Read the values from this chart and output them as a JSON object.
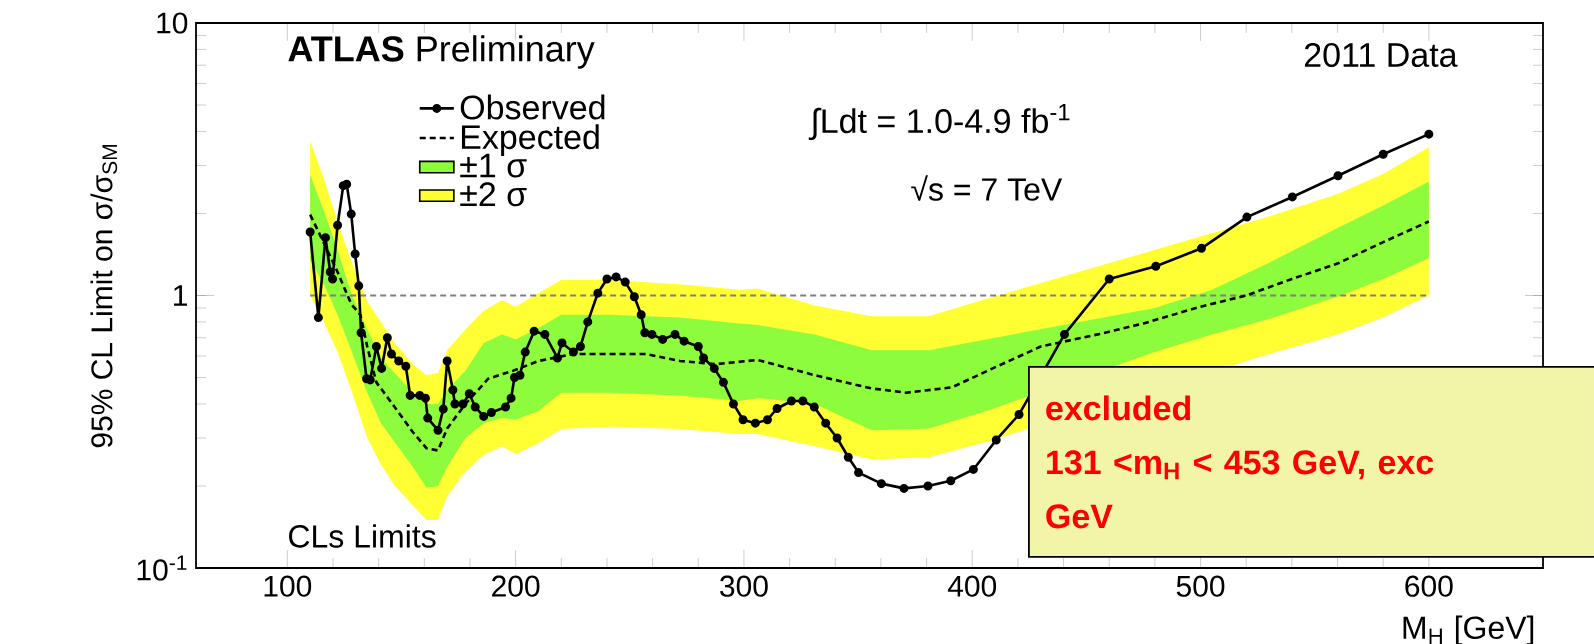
{
  "chart_data": {
    "type": "line",
    "xlabel": "M$_{H}$ [GeV]",
    "ylabel": "95% CL Limit on σ/σ$_{SM}$",
    "xlim": [
      60,
      650
    ],
    "ylim": [
      0.1,
      10
    ],
    "xticks": [
      100,
      200,
      300,
      400,
      500,
      600
    ],
    "yticks": [
      {
        "value": 0.1,
        "label": "10$^{-1}$"
      },
      1,
      10
    ],
    "log": "y",
    "legend": "top left",
    "ref_lines": [
      {
        "axis": "y",
        "value": 1,
        "color": "#808080",
        "line_style": "dashed"
      }
    ],
    "annotations": [
      "**ATLAS** Preliminary",
      "2011 Data",
      "∫Ldt = 1.0-4.9 fb$^{-1}$",
      "√s = 7 TeV",
      "CLs Limits",
      "excluded",
      "131 <m$_{H}$ < 453 GeV, exc",
      "GeV"
    ],
    "series": [
      {
        "name": "Observed",
        "color": "#000000",
        "marker": "circle",
        "line_style": "solid",
        "x": [
          110,
          113.6,
          116.7,
          118.8,
          119.8,
          122,
          124.5,
          126,
          128,
          129.7,
          131.3,
          132.3,
          134.7,
          136.3,
          139,
          141.3,
          143.8,
          145.6,
          148.8,
          151.9,
          153.8,
          158,
          160.5,
          161.5,
          166,
          168.3,
          170,
          172.5,
          173.4,
          176.9,
          179.7,
          182.3,
          186,
          189.4,
          195.6,
          198,
          199.5,
          201.9,
          204.2,
          208.1,
          212.8,
          218.3,
          220.3,
          225.3,
          228.4,
          231.6,
          236,
          240,
          244,
          248,
          252,
          255,
          256.6,
          259.7,
          264.4,
          269.8,
          273.8,
          280,
          282.3,
          287,
          291,
          295.4,
          299.6,
          305,
          310.3,
          314.5,
          320.8,
          325.8,
          330.8,
          335.8,
          340.8,
          345.7,
          350.2,
          360.2,
          370.1,
          380.6,
          390.6,
          400.5,
          410.5,
          420.5,
          430.4,
          440.4,
          460,
          480.4,
          500.4,
          520.3,
          540.2,
          560.2,
          580,
          600
        ],
        "values": [
          1.71,
          0.83,
          1.63,
          1.22,
          1.15,
          1.81,
          2.53,
          2.56,
          1.99,
          1.42,
          1.085,
          0.73,
          0.495,
          0.49,
          0.65,
          0.54,
          0.7,
          0.61,
          0.575,
          0.55,
          0.43,
          0.43,
          0.42,
          0.355,
          0.32,
          0.383,
          0.575,
          0.45,
          0.4,
          0.4,
          0.436,
          0.39,
          0.36,
          0.372,
          0.39,
          0.42,
          0.5,
          0.51,
          0.62,
          0.74,
          0.72,
          0.59,
          0.67,
          0.62,
          0.65,
          0.8,
          1.02,
          1.15,
          1.17,
          1.12,
          0.99,
          0.85,
          0.73,
          0.72,
          0.69,
          0.72,
          0.68,
          0.65,
          0.59,
          0.54,
          0.48,
          0.4,
          0.35,
          0.34,
          0.35,
          0.385,
          0.41,
          0.41,
          0.39,
          0.34,
          0.3,
          0.255,
          0.224,
          0.204,
          0.196,
          0.2,
          0.209,
          0.23,
          0.295,
          0.366,
          null,
          0.72,
          1.15,
          1.28,
          1.49,
          1.94,
          2.3,
          2.75,
          3.3,
          3.91
        ]
      },
      {
        "name": "Expected",
        "color": "#000000",
        "marker": "none",
        "line_style": "dashed",
        "x": [
          110,
          116,
          122,
          128,
          132,
          135,
          139,
          147,
          155,
          161,
          166,
          170,
          178,
          188,
          199,
          210,
          225,
          241,
          257,
          272,
          288,
          306,
          331,
          356,
          371,
          391,
          411,
          430,
          455,
          475,
          500,
          520,
          540,
          560,
          580,
          600
        ],
        "values": [
          1.98,
          1.56,
          1.22,
          0.93,
          0.85,
          0.65,
          0.48,
          0.39,
          0.315,
          0.275,
          0.27,
          0.325,
          0.4,
          0.495,
          0.53,
          0.575,
          0.61,
          0.61,
          0.61,
          0.575,
          0.56,
          0.58,
          0.51,
          0.456,
          0.44,
          0.46,
          0.55,
          0.65,
          0.72,
          0.79,
          0.91,
          1.0,
          1.15,
          1.31,
          1.57,
          1.87
        ]
      },
      {
        "name": "±1 σ",
        "type": "area",
        "color": "#8cfc3c",
        "x": [
          110,
          116,
          122,
          128,
          135,
          141,
          147,
          155,
          161,
          166,
          170,
          178,
          186,
          194,
          200,
          210,
          220,
          241,
          272,
          298,
          306,
          331,
          356,
          381,
          406,
          480,
          505,
          530,
          560,
          580,
          600
        ],
        "values": [
          null,
          null,
          null,
          null,
          null,
          null,
          null,
          null,
          null,
          null,
          null,
          null,
          null,
          null,
          null,
          null,
          null,
          null,
          null,
          null,
          null,
          null,
          null,
          null,
          null,
          null,
          null,
          null,
          null,
          null,
          null
        ],
        "lower": [
          1.35,
          1.1,
          0.85,
          0.63,
          0.44,
          0.34,
          0.29,
          0.235,
          0.197,
          0.2,
          0.235,
          0.3,
          0.34,
          0.355,
          0.35,
          0.377,
          0.44,
          0.44,
          0.43,
          0.41,
          0.42,
          0.4,
          0.32,
          0.325,
          0.376,
          0.62,
          0.72,
          0.82,
          0.99,
          1.15,
          1.37
        ],
        "upper": [
          2.77,
          2.05,
          1.47,
          1.02,
          0.75,
          0.59,
          0.52,
          0.44,
          0.4,
          0.4,
          0.45,
          0.53,
          0.67,
          0.72,
          0.69,
          0.76,
          0.85,
          0.85,
          0.83,
          0.79,
          0.78,
          0.72,
          0.63,
          0.63,
          0.69,
          0.9,
          1.05,
          1.32,
          1.77,
          2.14,
          2.62
        ]
      },
      {
        "name": "±2 σ",
        "type": "area",
        "color": "#ffff33",
        "x": [
          110,
          116,
          122,
          128,
          135,
          141,
          147,
          155,
          161,
          166,
          170,
          178,
          186,
          194,
          200,
          210,
          220,
          241,
          272,
          298,
          306,
          331,
          356,
          381,
          406,
          530,
          560,
          580,
          600
        ],
        "values": [
          null,
          null,
          null,
          null,
          null,
          null,
          null,
          null,
          null,
          null,
          null,
          null,
          null,
          null,
          null,
          null,
          null,
          null,
          null,
          null,
          null,
          null,
          null,
          null,
          null,
          null,
          null,
          null,
          null
        ],
        "lower": [
          1.0,
          0.8,
          0.62,
          0.45,
          0.3,
          0.24,
          0.2,
          0.17,
          0.15,
          0.15,
          0.183,
          0.226,
          0.26,
          0.28,
          0.262,
          0.287,
          0.324,
          0.33,
          0.324,
          0.31,
          0.31,
          0.28,
          0.25,
          0.255,
          0.29,
          0.61,
          0.72,
          0.83,
          1.0
        ],
        "upper": [
          3.69,
          2.69,
          1.87,
          1.34,
          0.95,
          0.8,
          0.67,
          0.56,
          0.51,
          0.52,
          0.63,
          0.75,
          0.88,
          0.96,
          0.91,
          1.02,
          1.14,
          1.14,
          1.1,
          1.05,
          1.06,
          0.92,
          0.84,
          0.84,
          0.97,
          1.95,
          2.36,
          2.79,
          3.5
        ]
      }
    ]
  }
}
